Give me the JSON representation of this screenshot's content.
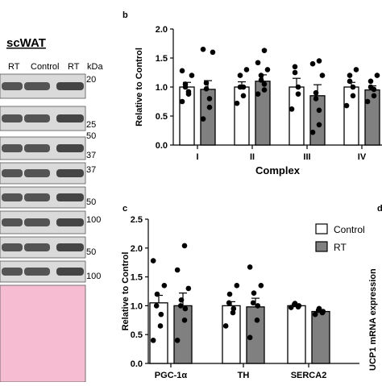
{
  "blot": {
    "title": "scWAT",
    "lane_labels": [
      "RT",
      "Control",
      "RT"
    ],
    "unit_label": "kDa",
    "markers": [
      "20",
      "25",
      "50",
      "37",
      "37",
      "50",
      "100",
      "50",
      "100"
    ]
  },
  "chart_data": [
    {
      "panel_label": "b",
      "type": "bar",
      "categories": [
        "I",
        "II",
        "III",
        "IV"
      ],
      "xlabel": "Complex",
      "ylabel": "Relative to Control",
      "ylim": [
        0,
        2.0
      ],
      "yticks": [
        "0.0",
        "0.5",
        "1.0",
        "1.5",
        "2.0"
      ],
      "series": [
        {
          "name": "Control",
          "color": "#ffffff",
          "values": [
            1.0,
            1.0,
            1.0,
            1.0
          ],
          "errors": [
            0.08,
            0.09,
            0.15,
            0.08
          ],
          "points": [
            [
              0.75,
              0.88,
              0.92,
              1.0,
              1.05,
              1.2,
              1.28
            ],
            [
              0.72,
              0.85,
              1.0,
              1.0,
              1.2,
              1.3
            ],
            [
              0.62,
              0.88,
              1.0,
              1.25,
              1.35
            ],
            [
              0.68,
              0.85,
              1.0,
              1.1,
              1.2,
              1.3
            ]
          ]
        },
        {
          "name": "RT",
          "color": "#808080",
          "values": [
            0.96,
            1.1,
            0.85,
            0.95
          ],
          "errors": [
            0.15,
            0.11,
            0.19,
            0.07
          ],
          "points": [
            [
              0.45,
              0.65,
              0.8,
              0.97,
              1.07,
              1.6,
              1.65
            ],
            [
              0.88,
              0.95,
              1.05,
              1.12,
              1.2,
              1.3,
              1.42,
              1.63
            ],
            [
              0.22,
              0.35,
              0.6,
              0.8,
              0.9,
              1.2,
              1.4,
              1.45
            ],
            [
              0.75,
              0.85,
              0.96,
              1.0,
              1.1,
              1.2
            ]
          ]
        }
      ]
    },
    {
      "panel_label": "c",
      "type": "bar",
      "categories": [
        "PGC-1α",
        "TH",
        "SERCA2"
      ],
      "xlabel": "",
      "ylabel": "Relative to Control",
      "ylim": [
        0,
        2.5
      ],
      "yticks": [
        "0.0",
        "0.5",
        "1.0",
        "1.5",
        "2.0",
        "2.5"
      ],
      "legend_position": "top-right",
      "series": [
        {
          "name": "Control",
          "color": "#ffffff",
          "values": [
            1.05,
            1.0,
            1.0
          ],
          "errors": [
            0.13,
            0.07,
            0.02
          ],
          "points": [
            [
              0.4,
              0.65,
              0.85,
              1.0,
              1.2,
              1.35,
              1.78
            ],
            [
              0.65,
              0.88,
              0.95,
              1.05,
              1.2,
              1.35
            ],
            [
              0.97,
              0.98,
              1.0,
              1.02,
              1.04
            ]
          ]
        },
        {
          "name": "RT",
          "color": "#808080",
          "values": [
            1.0,
            0.98,
            0.9
          ],
          "errors": [
            0.22,
            0.15,
            0.03
          ],
          "points": [
            [
              0.4,
              0.75,
              0.95,
              1.0,
              1.1,
              1.3,
              1.62,
              2.04
            ],
            [
              0.45,
              0.75,
              1.0,
              1.05,
              1.22,
              1.35,
              1.67
            ],
            [
              0.85,
              0.88,
              0.9,
              0.92,
              0.95
            ]
          ]
        }
      ]
    }
  ],
  "panel_d": {
    "label": "d",
    "ylabel": "UCP1 mRNA expression"
  }
}
